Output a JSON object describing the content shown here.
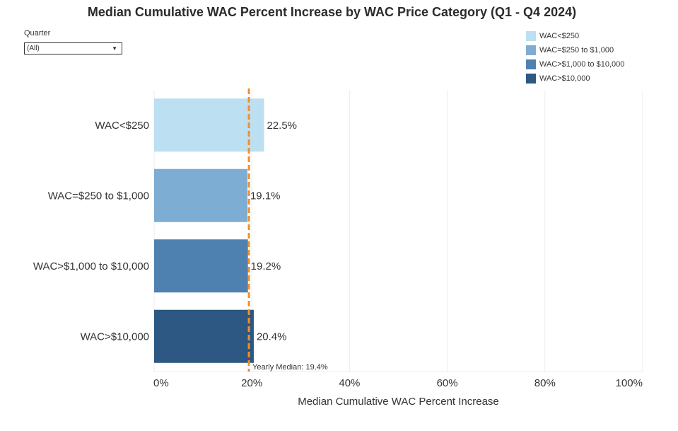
{
  "title": "Median Cumulative WAC Percent Increase by WAC Price Category (Q1 - Q4 2024)",
  "filter": {
    "label": "Quarter",
    "selected": "(All)",
    "arrow_icon": "dropdown-arrow-icon"
  },
  "legend": {
    "items": [
      {
        "label": "WAC<$250",
        "color": "#bcdff1"
      },
      {
        "label": "WAC=$250 to $1,000",
        "color": "#7eadd3"
      },
      {
        "label": "WAC>$1,000 to $10,000",
        "color": "#4f81b0"
      },
      {
        "label": "WAC>$10,000",
        "color": "#2c5883"
      }
    ]
  },
  "chart_data": {
    "type": "bar",
    "orientation": "horizontal",
    "title": "Median Cumulative WAC Percent Increase by WAC Price Category (Q1 - Q4 2024)",
    "categories": [
      "WAC<$250",
      "WAC=$250 to $1,000",
      "WAC>$1,000 to $10,000",
      "WAC>$10,000"
    ],
    "values": [
      22.5,
      19.1,
      19.2,
      20.4
    ],
    "value_labels": [
      "22.5%",
      "19.1%",
      "19.2%",
      "20.4%"
    ],
    "colors": [
      "#bcdff1",
      "#7eadd3",
      "#4f81b0",
      "#2c5883"
    ],
    "xlabel": "Median Cumulative WAC Percent Increase",
    "ylabel": "",
    "xlim": [
      0,
      100
    ],
    "xticks": [
      0,
      20,
      40,
      60,
      80,
      100
    ],
    "xtick_labels": [
      "0%",
      "20%",
      "40%",
      "60%",
      "80%",
      "100%"
    ],
    "grid": true,
    "legend_position": "top-right",
    "reference_line": {
      "value": 19.4,
      "label": "Yearly Median: 19.4%",
      "color": "#f28e2b",
      "style": "dashed"
    }
  }
}
